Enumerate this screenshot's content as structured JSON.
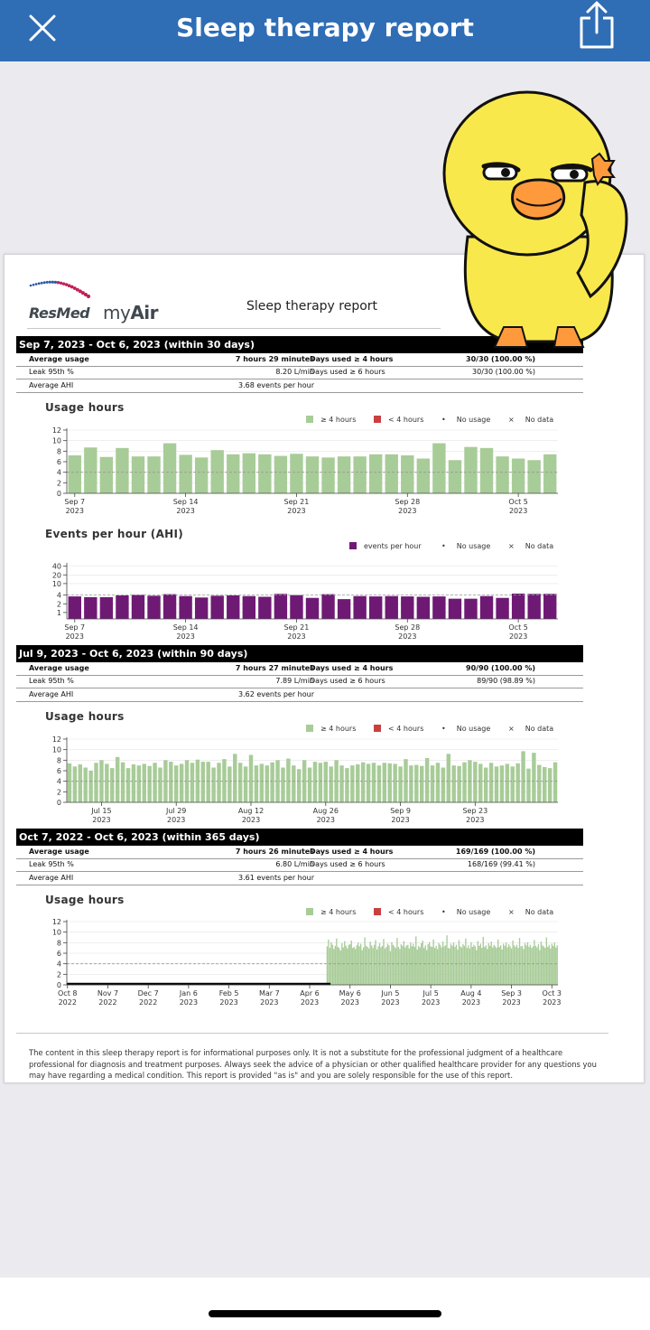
{
  "header": {
    "title": "Sleep therapy report"
  },
  "report": {
    "brand": "ResMed",
    "product_prefix": "my",
    "product_suffix": "Air",
    "title": "Sleep therapy report",
    "periods": [
      {
        "label": "Sep 7, 2023 - Oct 6, 2023 (within 30 days)",
        "rows": [
          [
            "Average usage",
            "7 hours 29 minutes",
            "Days used ≥ 4 hours",
            "30/30 (100.00 %)"
          ],
          [
            "Leak 95th %",
            "8.20 L/min",
            "Days used ≥ 6 hours",
            "30/30 (100.00 %)"
          ],
          [
            "Average AHI",
            "3.68 events per hour",
            "",
            ""
          ]
        ]
      },
      {
        "label": "Jul 9, 2023 - Oct 6, 2023 (within 90 days)",
        "rows": [
          [
            "Average usage",
            "7 hours 27 minutes",
            "Days used ≥ 4 hours",
            "90/90 (100.00 %)"
          ],
          [
            "Leak 95th %",
            "7.89 L/min",
            "Days used ≥ 6 hours",
            "89/90 (98.89 %)"
          ],
          [
            "Average AHI",
            "3.62 events per hour",
            "",
            ""
          ]
        ]
      },
      {
        "label": "Oct 7, 2022 - Oct 6, 2023 (within 365 days)",
        "rows": [
          [
            "Average usage",
            "7 hours 26 minutes",
            "Days used ≥ 4 hours",
            "169/169 (100.00 %)"
          ],
          [
            "Leak 95th %",
            "6.80 L/min",
            "Days used ≥ 6 hours",
            "168/169 (99.41 %)"
          ],
          [
            "Average AHI",
            "3.61 events per hour",
            "",
            ""
          ]
        ]
      }
    ],
    "usage_title": "Usage hours",
    "ahi_title": "Events per hour (AHI)",
    "legend_usage": {
      "ge4": "≥ 4 hours",
      "lt4": "< 4 hours",
      "no_usage": "No usage",
      "no_data": "No data"
    },
    "legend_ahi": {
      "events": "events per hour",
      "no_usage": "No usage",
      "no_data": "No data"
    },
    "disclaimer": "The content in this sleep therapy report is for informational purposes only. It is not a substitute for the professional judgment of a healthcare professional for diagnosis and treatment purposes. Always seek the advice of a physician or other qualified healthcare provider for any questions you may have regarding a medical condition. This report is provided \"as is\" and you are solely responsible for the use of this report."
  },
  "colors": {
    "bar": "#a8cc98",
    "ahi_bar": "#6e1a74",
    "lt4": "#c84040",
    "topbar": "#2f6db5"
  },
  "chart_data": [
    {
      "type": "bar",
      "title": "Usage hours",
      "ylim": [
        0,
        12
      ],
      "yticks": [
        0,
        2,
        4,
        6,
        8,
        10,
        12
      ],
      "threshold": 4,
      "x_ticks": [
        {
          "label": "Sep 7",
          "sub": "2023",
          "i": 0
        },
        {
          "label": "Sep 14",
          "sub": "2023",
          "i": 7
        },
        {
          "label": "Sep 21",
          "sub": "2023",
          "i": 14
        },
        {
          "label": "Sep 28",
          "sub": "2023",
          "i": 21
        },
        {
          "label": "Oct 5",
          "sub": "2023",
          "i": 28
        }
      ],
      "values": [
        7.2,
        8.7,
        6.9,
        8.6,
        7.0,
        7.0,
        9.5,
        7.3,
        6.8,
        8.2,
        7.4,
        7.6,
        7.4,
        7.1,
        7.5,
        7.0,
        6.8,
        7.0,
        7.0,
        7.4,
        7.4,
        7.2,
        6.6,
        9.5,
        6.3,
        8.8,
        8.6,
        7.0,
        6.6,
        6.3,
        7.4
      ]
    },
    {
      "type": "bar",
      "title": "Events per hour (AHI)",
      "scale": "log",
      "yticks": [
        1,
        2,
        4,
        10,
        20,
        40
      ],
      "threshold": 4,
      "x_ticks": [
        {
          "label": "Sep 7",
          "sub": "2023",
          "i": 0
        },
        {
          "label": "Sep 14",
          "sub": "2023",
          "i": 7
        },
        {
          "label": "Sep 21",
          "sub": "2023",
          "i": 14
        },
        {
          "label": "Sep 28",
          "sub": "2023",
          "i": 21
        },
        {
          "label": "Oct 5",
          "sub": "2023",
          "i": 28
        }
      ],
      "values": [
        3.6,
        3.4,
        3.4,
        3.9,
        4.1,
        3.8,
        4.3,
        3.7,
        3.3,
        3.8,
        3.9,
        3.7,
        3.5,
        4.4,
        4.0,
        3.2,
        4.3,
        2.9,
        3.7,
        3.6,
        3.7,
        3.6,
        3.5,
        3.6,
        3.0,
        3.0,
        3.7,
        3.2,
        4.5,
        4.4,
        4.4
      ]
    },
    {
      "type": "bar",
      "title": "Usage hours",
      "ylim": [
        0,
        12
      ],
      "yticks": [
        0,
        2,
        4,
        6,
        8,
        10,
        12
      ],
      "threshold": 4,
      "x_ticks": [
        {
          "label": "Jul 15",
          "sub": "2023",
          "i": 6
        },
        {
          "label": "Jul 29",
          "sub": "2023",
          "i": 20
        },
        {
          "label": "Aug 12",
          "sub": "2023",
          "i": 34
        },
        {
          "label": "Aug 26",
          "sub": "2023",
          "i": 48
        },
        {
          "label": "Sep 9",
          "sub": "2023",
          "i": 62
        },
        {
          "label": "Sep 23",
          "sub": "2023",
          "i": 76
        }
      ],
      "values": [
        7.4,
        6.8,
        7.2,
        6.6,
        6.0,
        7.5,
        8.0,
        7.3,
        6.5,
        8.6,
        7.6,
        6.5,
        7.2,
        7.0,
        7.3,
        6.9,
        7.5,
        6.6,
        8.0,
        7.7,
        7.0,
        7.3,
        8.0,
        7.5,
        8.1,
        7.7,
        7.7,
        6.6,
        7.5,
        8.2,
        6.8,
        9.2,
        7.5,
        6.8,
        9.0,
        7.0,
        7.3,
        7.0,
        7.6,
        8.0,
        6.6,
        8.3,
        7.0,
        6.3,
        8.0,
        6.6,
        7.7,
        7.5,
        7.7,
        6.8,
        8.0,
        7.0,
        6.5,
        7.0,
        7.2,
        7.6,
        7.3,
        7.5,
        7.0,
        7.5,
        7.4,
        7.3,
        6.8,
        8.2,
        7.0,
        7.1,
        6.9,
        8.4,
        7.0,
        7.5,
        6.6,
        9.2,
        7.0,
        6.9,
        7.6,
        8.0,
        7.7,
        7.3,
        6.6,
        7.5,
        6.8,
        7.0,
        7.3,
        6.8,
        7.4,
        9.7,
        6.4,
        9.4,
        7.1,
        6.7,
        6.5,
        7.6
      ]
    },
    {
      "type": "bar",
      "title": "Usage hours",
      "ylim": [
        0,
        12
      ],
      "yticks": [
        0,
        2,
        4,
        6,
        8,
        10,
        12
      ],
      "threshold": 4,
      "x_ticks": [
        {
          "label": "Oct 8",
          "sub": "2022",
          "i": 0
        },
        {
          "label": "Nov 7",
          "sub": "2022",
          "i": 30
        },
        {
          "label": "Dec 7",
          "sub": "2022",
          "i": 60
        },
        {
          "label": "Jan 6",
          "sub": "2023",
          "i": 90
        },
        {
          "label": "Feb 5",
          "sub": "2023",
          "i": 120
        },
        {
          "label": "Mar 7",
          "sub": "2023",
          "i": 150
        },
        {
          "label": "Apr 6",
          "sub": "2023",
          "i": 180
        },
        {
          "label": "May 6",
          "sub": "2023",
          "i": 210
        },
        {
          "label": "Jun 5",
          "sub": "2023",
          "i": 240
        },
        {
          "label": "Jul 5",
          "sub": "2023",
          "i": 270
        },
        {
          "label": "Aug 4",
          "sub": "2023",
          "i": 300
        },
        {
          "label": "Sep 3",
          "sub": "2023",
          "i": 330
        },
        {
          "label": "Oct 3",
          "sub": "2023",
          "i": 360
        }
      ],
      "no_data_range": [
        0,
        196
      ],
      "days": 365,
      "recent_values": [
        7.3,
        8.6,
        7.0,
        8.1,
        7.6,
        6.8,
        7.4,
        8.8,
        7.2,
        7.0,
        6.5,
        7.9,
        7.1,
        8.3,
        7.4,
        6.9,
        7.6,
        7.7,
        8.4,
        7.0,
        7.2,
        6.8,
        7.5,
        8.0,
        7.3,
        7.8,
        6.6,
        7.1,
        9.0,
        7.4,
        7.2,
        6.9,
        8.2,
        7.5,
        7.0,
        7.6,
        8.5,
        6.7,
        7.3,
        7.9,
        7.1,
        7.4,
        8.7,
        6.9,
        7.2,
        7.8,
        7.5,
        6.4,
        8.1,
        7.6,
        7.3,
        7.0,
        8.9,
        7.2,
        6.8,
        7.7,
        7.4,
        8.3,
        7.1,
        7.5,
        7.6,
        6.9,
        8.0,
        7.3,
        7.8,
        7.2,
        9.2,
        6.7,
        7.4,
        7.1,
        7.9,
        8.4,
        7.0,
        7.5,
        6.6,
        7.7,
        8.1,
        7.3,
        7.2,
        8.6,
        7.0,
        7.4,
        6.8,
        7.9,
        7.6,
        7.1,
        8.2,
        7.3,
        7.5,
        9.4,
        7.0,
        6.9,
        7.8,
        7.4,
        8.0,
        7.2,
        7.6,
        6.7,
        8.5,
        7.3,
        7.1,
        7.7,
        7.4,
        8.8,
        7.0,
        7.5,
        6.9,
        8.1,
        7.2,
        7.6,
        7.3,
        6.6,
        8.3,
        7.4,
        7.8,
        7.0,
        9.1,
        7.2,
        7.5,
        6.8,
        7.9,
        7.4,
        8.2,
        7.1,
        7.6,
        7.3,
        7.0,
        8.6,
        7.2,
        7.5,
        6.7,
        7.8,
        7.4,
        8.0,
        7.1,
        7.7,
        7.3,
        6.9,
        8.4,
        7.5,
        7.2,
        7.6,
        7.0,
        8.9,
        7.3,
        7.4,
        6.8,
        7.9,
        7.5,
        8.1,
        7.2,
        7.6,
        7.0,
        7.3,
        8.5,
        7.4,
        7.1,
        7.7,
        6.6,
        8.2,
        7.5,
        7.3,
        7.0,
        9.0,
        7.2,
        7.6,
        6.9,
        7.8,
        7.4,
        8.0,
        7.1,
        7.5
      ]
    }
  ]
}
